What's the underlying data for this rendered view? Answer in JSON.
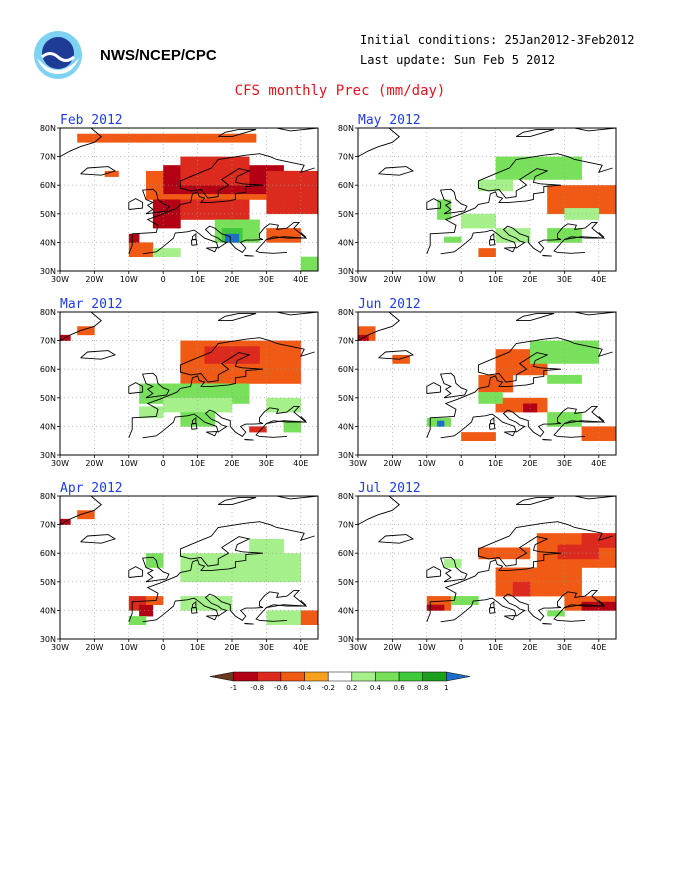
{
  "header": {
    "agency": "NWS/NCEP/CPC",
    "initial_conditions": "Initial conditions: 25Jan2012-3Feb2012",
    "last_update": "Last update: Sun Feb 5 2012",
    "title": "CFS monthly Prec (mm/day)"
  },
  "axes": {
    "lat_labels": [
      "30N",
      "40N",
      "50N",
      "60N",
      "70N",
      "80N"
    ],
    "lon_labels": [
      "30W",
      "20W",
      "10W",
      "0",
      "10E",
      "20E",
      "30E",
      "40E"
    ]
  },
  "colors": {
    "n10": "#6b3a1e",
    "n08": "#b40014",
    "n06": "#dc2a1e",
    "n04": "#f05a14",
    "n02": "#f5a01e",
    "p02": "#a6f08c",
    "p04": "#78e05a",
    "p06": "#40c83c",
    "p08": "#1e9e1e",
    "p10": "#1e6ec8",
    "land": "#000000",
    "grid": "#999999",
    "panel_title": "#1e3ce6"
  },
  "colorbar": {
    "labels": [
      "-1",
      "-0.8",
      "-0.6",
      "-0.4",
      "-0.2",
      "0.2",
      "0.4",
      "0.6",
      "0.8",
      "1"
    ],
    "bins": [
      "n10",
      "n08",
      "n06",
      "n04",
      "n02",
      "zero",
      "p02",
      "p04",
      "p06",
      "p08",
      "p10"
    ]
  },
  "chart_data": [
    {
      "type": "heatmap",
      "title": "Feb 2012",
      "units": "mm/day",
      "xlim": [
        -30,
        45
      ],
      "ylim": [
        30,
        80
      ],
      "cell_deg": [
        2.5,
        2.5
      ],
      "anomalies": [
        [
          -25,
          75,
          27,
          78,
          -0.4
        ],
        [
          -17,
          63,
          -13,
          65,
          -0.4
        ],
        [
          -5,
          55,
          40,
          65,
          -0.4
        ],
        [
          0,
          57,
          35,
          67,
          -0.8
        ],
        [
          5,
          60,
          25,
          70,
          -0.6
        ],
        [
          -3,
          45,
          5,
          55,
          -0.8
        ],
        [
          5,
          48,
          25,
          55,
          -0.6
        ],
        [
          30,
          50,
          45,
          65,
          -0.6
        ],
        [
          -10,
          35,
          -3,
          40,
          -0.4
        ],
        [
          -10,
          40,
          -7,
          43,
          -0.8
        ],
        [
          15,
          40,
          28,
          48,
          0.4
        ],
        [
          17,
          40,
          23,
          45,
          0.6
        ],
        [
          18,
          40,
          22,
          43,
          1
        ],
        [
          30,
          40,
          40,
          45,
          -0.4
        ],
        [
          40,
          30,
          45,
          35,
          0.4
        ],
        [
          -3,
          35,
          5,
          38,
          0.2
        ]
      ]
    },
    {
      "type": "heatmap",
      "title": "May 2012",
      "units": "mm/day",
      "xlim": [
        -30,
        45
      ],
      "ylim": [
        30,
        80
      ],
      "cell_deg": [
        2.5,
        2.5
      ],
      "anomalies": [
        [
          10,
          62,
          35,
          70,
          0.4
        ],
        [
          5,
          58,
          15,
          62,
          0.2
        ],
        [
          25,
          50,
          45,
          60,
          -0.4
        ],
        [
          38,
          52,
          45,
          58,
          -0.4
        ],
        [
          -7,
          48,
          -3,
          55,
          0.4
        ],
        [
          0,
          45,
          10,
          50,
          0.2
        ],
        [
          -5,
          40,
          0,
          42,
          0.4
        ],
        [
          5,
          35,
          10,
          38,
          -0.4
        ],
        [
          10,
          40,
          20,
          45,
          0.2
        ],
        [
          25,
          40,
          35,
          45,
          0.4
        ],
        [
          30,
          48,
          40,
          52,
          0.2
        ]
      ]
    },
    {
      "type": "heatmap",
      "title": "Mar 2012",
      "units": "mm/day",
      "xlim": [
        -30,
        45
      ],
      "ylim": [
        30,
        80
      ],
      "cell_deg": [
        2.5,
        2.5
      ],
      "anomalies": [
        [
          -30,
          70,
          -27,
          72,
          -0.8
        ],
        [
          -25,
          72,
          -20,
          75,
          -0.4
        ],
        [
          5,
          55,
          40,
          70,
          -0.4
        ],
        [
          12,
          62,
          28,
          68,
          -0.6
        ],
        [
          -7,
          48,
          25,
          55,
          0.4
        ],
        [
          0,
          45,
          20,
          50,
          0.2
        ],
        [
          -7,
          43,
          0,
          47,
          0.2
        ],
        [
          5,
          40,
          15,
          45,
          0.4
        ],
        [
          25,
          38,
          30,
          40,
          -0.6
        ],
        [
          35,
          38,
          40,
          42,
          0.4
        ],
        [
          30,
          45,
          40,
          50,
          0.2
        ]
      ]
    },
    {
      "type": "heatmap",
      "title": "Jun 2012",
      "units": "mm/day",
      "xlim": [
        -30,
        45
      ],
      "ylim": [
        30,
        80
      ],
      "cell_deg": [
        2.5,
        2.5
      ],
      "anomalies": [
        [
          -30,
          70,
          -25,
          75,
          -0.4
        ],
        [
          -20,
          62,
          -15,
          65,
          -0.4
        ],
        [
          10,
          58,
          25,
          67,
          -0.4
        ],
        [
          20,
          62,
          40,
          70,
          0.4
        ],
        [
          25,
          55,
          35,
          58,
          0.4
        ],
        [
          5,
          52,
          15,
          58,
          -0.4
        ],
        [
          10,
          45,
          25,
          50,
          -0.4
        ],
        [
          18,
          45,
          22,
          48,
          -0.8
        ],
        [
          5,
          48,
          12,
          52,
          0.4
        ],
        [
          -10,
          40,
          -3,
          43,
          0.4
        ],
        [
          -7,
          40,
          -5,
          42,
          1
        ],
        [
          0,
          35,
          10,
          38,
          -0.4
        ],
        [
          25,
          40,
          35,
          45,
          0.4
        ],
        [
          35,
          35,
          45,
          40,
          -0.4
        ],
        [
          -30,
          70,
          -27,
          72,
          -0.8
        ]
      ]
    },
    {
      "type": "heatmap",
      "title": "Apr 2012",
      "units": "mm/day",
      "xlim": [
        -30,
        45
      ],
      "ylim": [
        30,
        80
      ],
      "cell_deg": [
        2.5,
        2.5
      ],
      "anomalies": [
        [
          -30,
          70,
          -27,
          72,
          -0.8
        ],
        [
          -25,
          72,
          -20,
          75,
          -0.4
        ],
        [
          -5,
          55,
          0,
          60,
          0.4
        ],
        [
          5,
          50,
          40,
          60,
          0.2
        ],
        [
          25,
          60,
          35,
          65,
          0.2
        ],
        [
          -10,
          40,
          -5,
          45,
          -0.6
        ],
        [
          -7,
          38,
          -3,
          42,
          -0.8
        ],
        [
          -5,
          42,
          0,
          45,
          -0.4
        ],
        [
          -10,
          35,
          -5,
          38,
          0.4
        ],
        [
          5,
          40,
          20,
          45,
          0.2
        ],
        [
          30,
          35,
          40,
          40,
          0.2
        ],
        [
          40,
          35,
          45,
          40,
          -0.4
        ]
      ]
    },
    {
      "type": "heatmap",
      "title": "Jul 2012",
      "units": "mm/day",
      "xlim": [
        -30,
        45
      ],
      "ylim": [
        30,
        80
      ],
      "cell_deg": [
        2.5,
        2.5
      ],
      "anomalies": [
        [
          22,
          55,
          45,
          67,
          -0.4
        ],
        [
          28,
          58,
          40,
          63,
          -0.6
        ],
        [
          35,
          62,
          45,
          67,
          -0.6
        ],
        [
          5,
          58,
          20,
          62,
          -0.4
        ],
        [
          10,
          45,
          35,
          55,
          -0.4
        ],
        [
          15,
          45,
          20,
          50,
          -0.6
        ],
        [
          -10,
          40,
          -3,
          45,
          -0.4
        ],
        [
          -10,
          40,
          -5,
          42,
          -0.8
        ],
        [
          -3,
          42,
          5,
          45,
          0.4
        ],
        [
          30,
          40,
          45,
          45,
          -0.4
        ],
        [
          35,
          40,
          45,
          43,
          -0.8
        ],
        [
          25,
          38,
          30,
          40,
          0.4
        ],
        [
          -5,
          55,
          0,
          58,
          0.2
        ]
      ]
    }
  ]
}
